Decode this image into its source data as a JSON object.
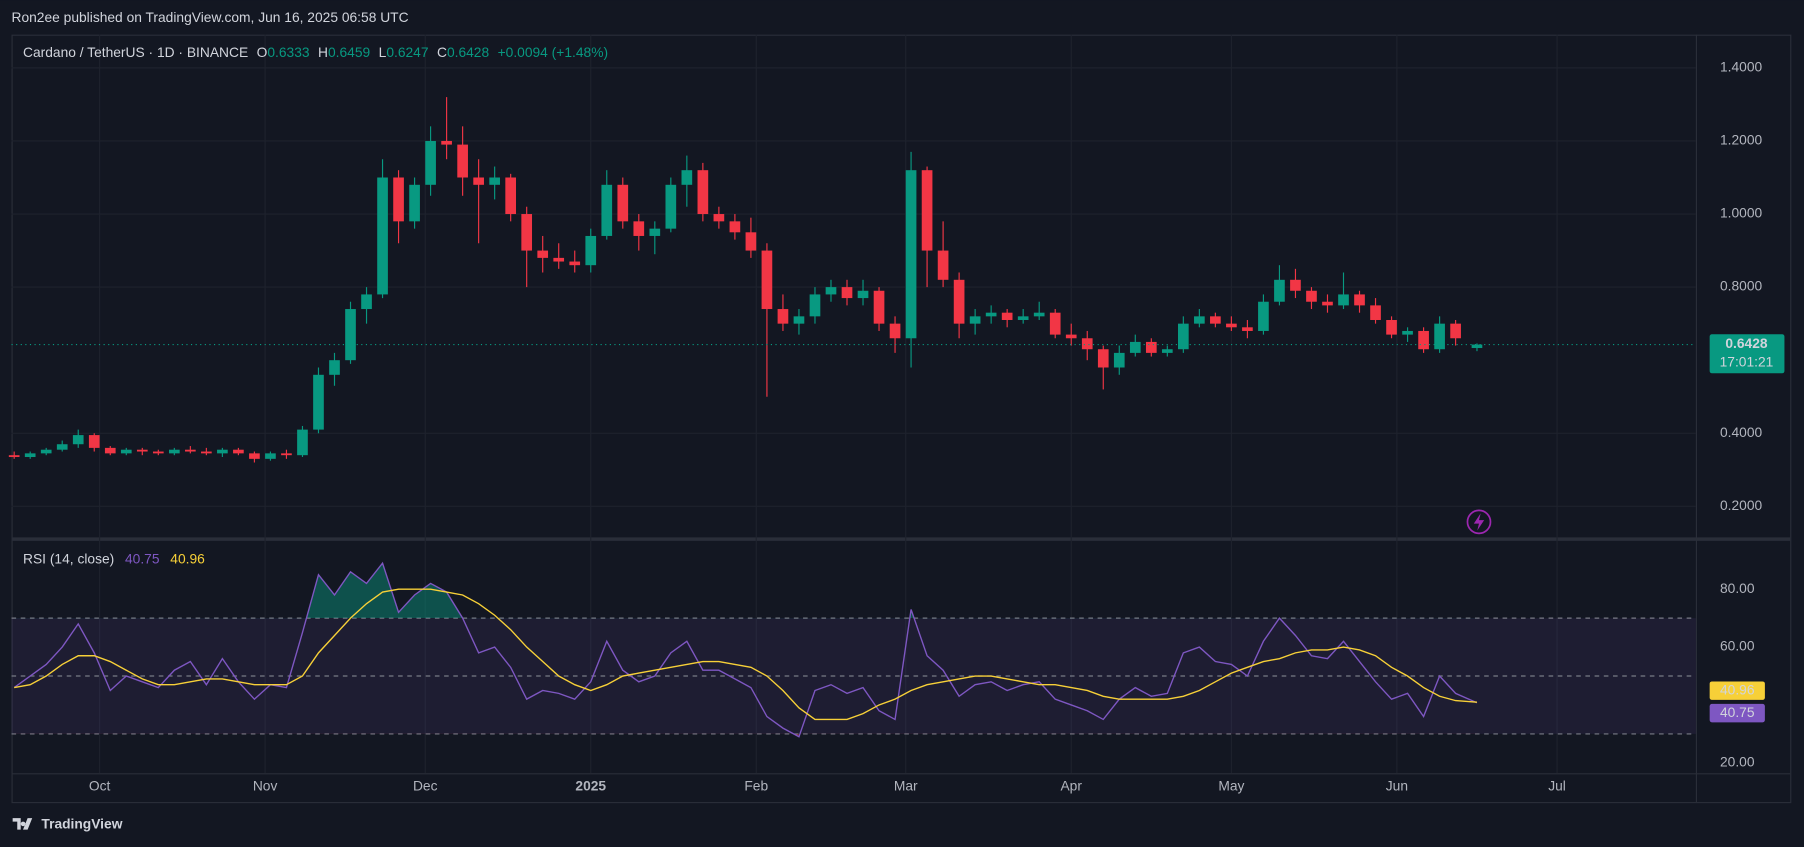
{
  "header": {
    "text": "Ron2ee published on TradingView.com, Jun 16, 2025 06:58 UTC"
  },
  "footer": {
    "brand": "TradingView"
  },
  "chart_data": [
    {
      "type": "candlestick",
      "title": "Cardano / TetherUS · 1D · BINANCE",
      "ohlc_labels": [
        "O",
        "H",
        "L",
        "C"
      ],
      "change": "+0.0094 (+1.48%)",
      "countdown": "17:01:21",
      "x": [
        0,
        3,
        6,
        9,
        12,
        15,
        18,
        21,
        24,
        27,
        30,
        33,
        36,
        39,
        42,
        45,
        48,
        51,
        54,
        57,
        60,
        63,
        66,
        69,
        72,
        75,
        78,
        81,
        84,
        87,
        90,
        93,
        96,
        99,
        102,
        105,
        108,
        111,
        114,
        117,
        120,
        123,
        126,
        129,
        132,
        135,
        138,
        141,
        144,
        147,
        150,
        153,
        156,
        159,
        162,
        165,
        168,
        171,
        174,
        177,
        180,
        183,
        186,
        189,
        192,
        195,
        198,
        201,
        204,
        207,
        210,
        213,
        216,
        219,
        222,
        225,
        228,
        231,
        234,
        237,
        240,
        243,
        246,
        249,
        252,
        255,
        258,
        261,
        264,
        267,
        270,
        274
      ],
      "open": [
        0.34,
        0.335,
        0.345,
        0.355,
        0.37,
        0.395,
        0.36,
        0.345,
        0.355,
        0.35,
        0.345,
        0.355,
        0.35,
        0.345,
        0.355,
        0.345,
        0.33,
        0.345,
        0.34,
        0.41,
        0.56,
        0.6,
        0.74,
        0.78,
        1.1,
        0.98,
        1.08,
        1.2,
        1.19,
        1.1,
        1.08,
        1.1,
        1.0,
        0.9,
        0.88,
        0.87,
        0.86,
        0.94,
        1.08,
        0.98,
        0.94,
        0.96,
        1.08,
        1.12,
        1.0,
        0.98,
        0.95,
        0.9,
        0.74,
        0.7,
        0.72,
        0.78,
        0.8,
        0.77,
        0.79,
        0.7,
        0.66,
        1.12,
        0.9,
        0.82,
        0.7,
        0.72,
        0.73,
        0.71,
        0.72,
        0.73,
        0.67,
        0.66,
        0.63,
        0.58,
        0.62,
        0.65,
        0.62,
        0.63,
        0.7,
        0.72,
        0.7,
        0.69,
        0.68,
        0.76,
        0.82,
        0.79,
        0.76,
        0.75,
        0.78,
        0.75,
        0.71,
        0.67,
        0.68,
        0.63,
        0.7,
        0.6333
      ],
      "high": [
        0.35,
        0.35,
        0.36,
        0.38,
        0.41,
        0.4,
        0.365,
        0.36,
        0.36,
        0.355,
        0.36,
        0.365,
        0.36,
        0.36,
        0.36,
        0.35,
        0.35,
        0.355,
        0.42,
        0.58,
        0.62,
        0.76,
        0.8,
        1.15,
        1.12,
        1.1,
        1.24,
        1.32,
        1.24,
        1.15,
        1.13,
        1.11,
        1.02,
        0.94,
        0.92,
        0.9,
        0.96,
        1.12,
        1.1,
        1.0,
        0.98,
        1.1,
        1.16,
        1.14,
        1.02,
        1.0,
        0.99,
        0.92,
        0.78,
        0.74,
        0.8,
        0.82,
        0.82,
        0.82,
        0.8,
        0.72,
        1.17,
        1.13,
        0.98,
        0.84,
        0.74,
        0.75,
        0.74,
        0.74,
        0.76,
        0.74,
        0.7,
        0.68,
        0.64,
        0.64,
        0.67,
        0.66,
        0.64,
        0.72,
        0.74,
        0.73,
        0.72,
        0.71,
        0.78,
        0.86,
        0.85,
        0.8,
        0.78,
        0.84,
        0.79,
        0.77,
        0.72,
        0.69,
        0.69,
        0.72,
        0.71,
        0.6459
      ],
      "low": [
        0.33,
        0.33,
        0.34,
        0.35,
        0.36,
        0.35,
        0.34,
        0.34,
        0.34,
        0.34,
        0.34,
        0.345,
        0.34,
        0.335,
        0.34,
        0.32,
        0.325,
        0.33,
        0.335,
        0.4,
        0.53,
        0.59,
        0.7,
        0.77,
        0.92,
        0.96,
        1.05,
        1.15,
        1.05,
        0.92,
        1.04,
        0.98,
        0.8,
        0.84,
        0.85,
        0.84,
        0.84,
        0.93,
        0.96,
        0.9,
        0.89,
        0.95,
        1.02,
        0.98,
        0.96,
        0.93,
        0.88,
        0.5,
        0.68,
        0.67,
        0.7,
        0.76,
        0.75,
        0.75,
        0.68,
        0.62,
        0.58,
        0.8,
        0.8,
        0.66,
        0.67,
        0.7,
        0.69,
        0.7,
        0.71,
        0.66,
        0.64,
        0.6,
        0.52,
        0.56,
        0.61,
        0.61,
        0.61,
        0.62,
        0.69,
        0.69,
        0.68,
        0.66,
        0.67,
        0.75,
        0.77,
        0.74,
        0.73,
        0.74,
        0.73,
        0.7,
        0.66,
        0.65,
        0.62,
        0.62,
        0.64,
        0.6247
      ],
      "close": [
        0.335,
        0.345,
        0.355,
        0.37,
        0.395,
        0.36,
        0.345,
        0.355,
        0.35,
        0.345,
        0.355,
        0.35,
        0.345,
        0.355,
        0.345,
        0.33,
        0.345,
        0.34,
        0.41,
        0.56,
        0.6,
        0.74,
        0.78,
        1.1,
        0.98,
        1.08,
        1.2,
        1.19,
        1.1,
        1.08,
        1.1,
        1.0,
        0.9,
        0.88,
        0.87,
        0.86,
        0.94,
        1.08,
        0.98,
        0.94,
        0.96,
        1.08,
        1.12,
        1.0,
        0.98,
        0.95,
        0.9,
        0.74,
        0.7,
        0.72,
        0.78,
        0.8,
        0.77,
        0.79,
        0.7,
        0.66,
        1.12,
        0.9,
        0.82,
        0.7,
        0.72,
        0.73,
        0.71,
        0.72,
        0.73,
        0.67,
        0.66,
        0.63,
        0.58,
        0.62,
        0.65,
        0.62,
        0.63,
        0.7,
        0.72,
        0.7,
        0.69,
        0.68,
        0.76,
        0.82,
        0.79,
        0.76,
        0.75,
        0.78,
        0.75,
        0.71,
        0.67,
        0.68,
        0.63,
        0.7,
        0.66,
        0.6428
      ],
      "up_color": "#089981",
      "down_color": "#f23645",
      "xlim": [
        -0.5,
        315
      ],
      "xticks": [
        {
          "value": 16,
          "label": "Oct"
        },
        {
          "value": 47,
          "label": "Nov"
        },
        {
          "value": 77,
          "label": "Dec"
        },
        {
          "value": 108,
          "label": "2025"
        },
        {
          "value": 139,
          "label": "Feb"
        },
        {
          "value": 167,
          "label": "Mar"
        },
        {
          "value": 198,
          "label": "Apr"
        },
        {
          "value": 228,
          "label": "May"
        },
        {
          "value": 259,
          "label": "Jun"
        },
        {
          "value": 289,
          "label": "Jul"
        }
      ],
      "ylim": [
        0.115,
        1.491
      ],
      "yticks": [
        {
          "value": 0.2,
          "label": "0.2000"
        },
        {
          "value": 0.4,
          "label": "0.4000"
        },
        {
          "value": 0.8,
          "label": "0.8000"
        },
        {
          "value": 1.0,
          "label": "1.0000"
        },
        {
          "value": 1.2,
          "label": "1.2000"
        },
        {
          "value": 1.4,
          "label": "1.4000"
        }
      ],
      "grid": true
    },
    {
      "type": "line",
      "title": "RSI (14, close)",
      "series": [
        {
          "color": "#7e57c2",
          "values": [
            46,
            50,
            54,
            60,
            68,
            58,
            45,
            50,
            48,
            46,
            52,
            55,
            47,
            56,
            48,
            42,
            47,
            46,
            65,
            85,
            78,
            86,
            82,
            89,
            72,
            78,
            82,
            79,
            70,
            58,
            60,
            53,
            42,
            45,
            44,
            42,
            48,
            62,
            52,
            48,
            50,
            58,
            62,
            52,
            52,
            49,
            46,
            36,
            32,
            29,
            45,
            47,
            44,
            46,
            38,
            35,
            73,
            57,
            52,
            43,
            47,
            48,
            45,
            47,
            48,
            42,
            40,
            38,
            35,
            42,
            46,
            43,
            44,
            58,
            60,
            55,
            54,
            50,
            62,
            70,
            64,
            57,
            56,
            62,
            55,
            48,
            42,
            44,
            36,
            50,
            44,
            40.75
          ]
        },
        {
          "color": "#f7d038",
          "values": [
            46,
            47,
            50,
            54,
            57,
            57,
            55,
            52,
            49,
            47,
            47,
            48,
            49,
            49,
            48,
            47,
            47,
            47,
            50,
            58,
            64,
            70,
            75,
            79,
            80,
            80,
            80,
            79,
            78,
            75,
            71,
            66,
            60,
            55,
            50,
            47,
            45,
            47,
            50,
            51,
            52,
            53,
            54,
            55,
            55,
            54,
            53,
            50,
            45,
            39,
            35,
            35,
            35,
            37,
            40,
            42,
            45,
            47,
            48,
            49,
            50,
            50,
            49,
            48,
            47,
            47,
            46,
            45,
            43,
            42,
            42,
            42,
            42,
            43,
            45,
            48,
            51,
            53,
            55,
            56,
            58,
            59,
            59,
            60,
            59,
            57,
            53,
            50,
            46,
            43,
            41.5,
            40.96
          ]
        }
      ],
      "levels": [
        30,
        50,
        70
      ],
      "ylim": [
        16.4,
        96.7
      ],
      "yticks": [
        {
          "value": 20,
          "label": "20.00"
        },
        {
          "value": 60,
          "label": "60.00"
        },
        {
          "value": 80,
          "label": "80.00"
        }
      ]
    }
  ]
}
